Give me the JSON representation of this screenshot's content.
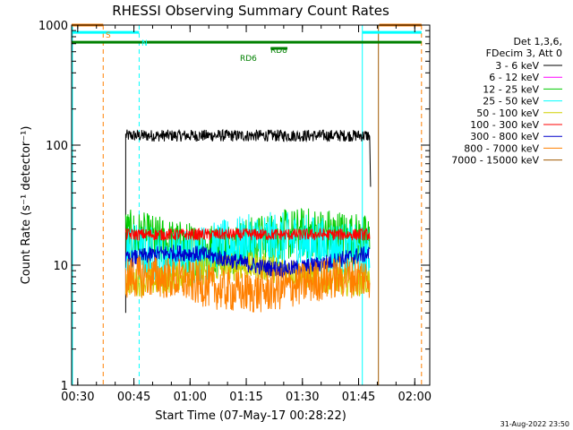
{
  "chart_data": {
    "type": "line",
    "title": "RHESSI Observing Summary Count Rates",
    "xlabel": "Start Time (07-May-17 00:28:22)",
    "ylabel": "Count Rate (s⁻¹ detector⁻¹)",
    "x_range_minutes": [
      28.37,
      124.0
    ],
    "ylim": [
      1,
      1000
    ],
    "yscale": "log",
    "x_ticks": [
      {
        "label": "00:30",
        "min": 30
      },
      {
        "label": "00:45",
        "min": 45
      },
      {
        "label": "01:00",
        "min": 60
      },
      {
        "label": "01:15",
        "min": 75
      },
      {
        "label": "01:30",
        "min": 90
      },
      {
        "label": "01:45",
        "min": 105
      },
      {
        "label": "02:00",
        "min": 120
      }
    ],
    "y_ticks": [
      {
        "label": "1",
        "value": 1
      },
      {
        "label": "10",
        "value": 10
      },
      {
        "label": "100",
        "value": 100
      },
      {
        "label": "1000",
        "value": 1000
      }
    ],
    "legend_header": [
      "Det 1,3,6,",
      "FDecim 3, Att 0"
    ],
    "legend_position": "right",
    "series": [
      {
        "name": "3 - 6 keV",
        "color": "#000000",
        "start": 42.8,
        "end": 108.0,
        "level": 120,
        "noise": 0.05,
        "rise_from": 4,
        "drop_to": 45
      },
      {
        "name": "6 - 12 keV",
        "color": "#ff00ff",
        "start": 42.8,
        "end": 108.0,
        "level": 0,
        "noise": 0
      },
      {
        "name": "12 - 25 keV",
        "color": "#00cc00",
        "start": 42.8,
        "end": 108.0,
        "level": 16,
        "noise": 0.22
      },
      {
        "name": "25 - 50 keV",
        "color": "#00ffff",
        "start": 42.8,
        "end": 108.0,
        "level": 14,
        "noise": 0.24
      },
      {
        "name": "50 - 100 keV",
        "color": "#d0d000",
        "start": 42.8,
        "end": 108.0,
        "level": 8.5,
        "noise": 0.12
      },
      {
        "name": "100 - 300 keV",
        "color": "#ff0000",
        "start": 42.8,
        "end": 108.0,
        "level": 18,
        "noise": 0.05
      },
      {
        "name": "300 - 800 keV",
        "color": "#0000cc",
        "start": 42.8,
        "end": 108.0,
        "level": 11,
        "noise": 0.07
      },
      {
        "name": "800 - 7000 keV",
        "color": "#ff8000",
        "start": 42.8,
        "end": 108.0,
        "level": 7,
        "noise": 0.18
      },
      {
        "name": "7000 - 15000 keV",
        "color": "#a05a00",
        "start": 42.8,
        "end": 108.0,
        "level": 0,
        "noise": 0
      }
    ],
    "flag_bars": [
      {
        "label": "S",
        "color": "#ff8000",
        "segments": [
          [
            28.37,
            36.8
          ],
          [
            110.5,
            121.8
          ]
        ],
        "y": 1000
      },
      {
        "label": "N",
        "color": "#00ffff",
        "segments": [
          [
            28.37,
            46.4
          ],
          [
            106.0,
            121.8
          ]
        ],
        "y": 870
      },
      {
        "label": "",
        "color": "#008000",
        "segments": [
          [
            28.37,
            121.8
          ]
        ],
        "y": 720
      },
      {
        "label": "RD8",
        "color": "#008000",
        "segments": [],
        "y": 720
      },
      {
        "label": "RD6",
        "color": "#008000",
        "segments": [
          [
            81.5,
            86.0
          ]
        ],
        "y": 640
      }
    ],
    "vertical_markers": [
      {
        "min": 36.8,
        "color": "#ff8000",
        "style": "dashed"
      },
      {
        "min": 46.4,
        "color": "#00ffff",
        "style": "dashed"
      },
      {
        "min": 106.0,
        "color": "#00ffff",
        "style": "solid"
      },
      {
        "min": 110.3,
        "color": "#a05a00",
        "style": "solid"
      },
      {
        "min": 121.8,
        "color": "#ff8000",
        "style": "dashed"
      },
      {
        "min": 28.6,
        "color": "#00ffff",
        "style": "solid"
      }
    ]
  },
  "footer": {
    "timestamp": "31-Aug-2022 23:50"
  }
}
